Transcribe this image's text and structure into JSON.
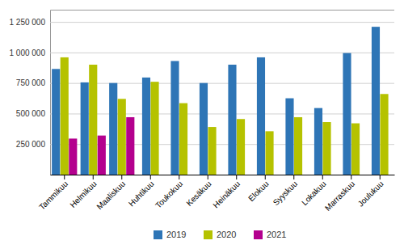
{
  "chart_data": {
    "type": "bar",
    "categories": [
      "Tammikuu",
      "Helmikuu",
      "Maaliskuu",
      "Huhtikuu",
      "Toukokuu",
      "Kesäkuu",
      "Heinäkuu",
      "Elokuu",
      "Syyskuu",
      "Lokakuu",
      "Marraskuu",
      "Joulukuu"
    ],
    "series": [
      {
        "name": "2019",
        "color": "#2e75b6",
        "values": [
          865000,
          755000,
          750000,
          795000,
          930000,
          750000,
          900000,
          960000,
          625000,
          545000,
          995000,
          1210000
        ]
      },
      {
        "name": "2020",
        "color": "#b5c200",
        "values": [
          960000,
          900000,
          620000,
          760000,
          585000,
          390000,
          455000,
          355000,
          470000,
          430000,
          420000,
          660000
        ]
      },
      {
        "name": "2021",
        "color": "#b4008e",
        "values": [
          295000,
          320000,
          470000,
          null,
          null,
          null,
          null,
          null,
          null,
          null,
          null,
          null
        ]
      }
    ],
    "ylim": [
      0,
      1350000
    ],
    "yticks": [
      {
        "value": 250000,
        "label": "250 000"
      },
      {
        "value": 500000,
        "label": "500 000"
      },
      {
        "value": 750000,
        "label": "750 000"
      },
      {
        "value": 1000000,
        "label": "1 000 000"
      },
      {
        "value": 1250000,
        "label": "1 250 000"
      }
    ],
    "grid": true,
    "legend": "bottom"
  }
}
